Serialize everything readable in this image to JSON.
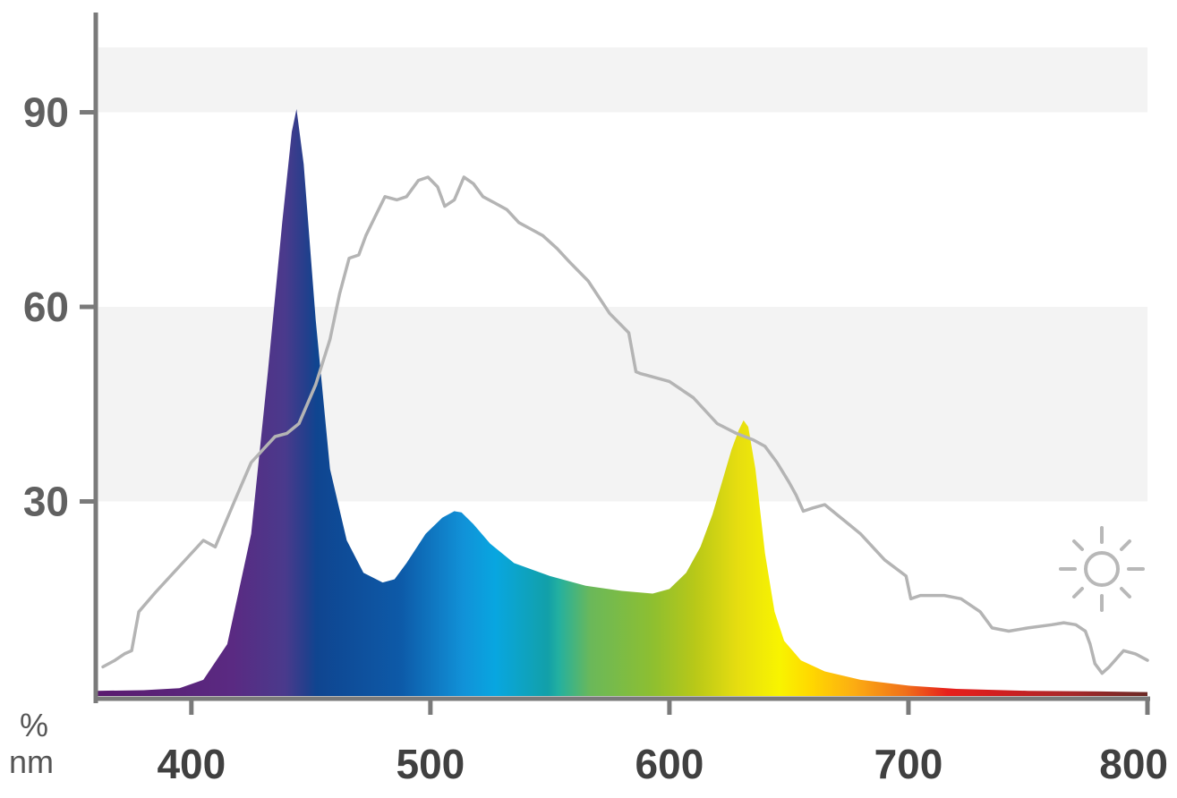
{
  "chart_data": {
    "type": "area",
    "title": "",
    "xlabel": "nm",
    "ylabel": "%",
    "xlim": [
      360,
      800
    ],
    "ylim": [
      0,
      100
    ],
    "x_ticks": [
      400,
      500,
      600,
      700,
      800
    ],
    "x_tick_labels": [
      "400",
      "500",
      "600",
      "700",
      "800"
    ],
    "y_ticks": [
      30,
      60,
      90
    ],
    "y_tick_labels": [
      "30",
      "60",
      "90"
    ],
    "grid_bands": [
      [
        30,
        60
      ],
      [
        90,
        100
      ]
    ],
    "series": [
      {
        "style": "filled spectrum-colored area",
        "x": [
          360,
          380,
          395,
          405,
          415,
          425,
          432,
          438,
          442,
          444,
          447,
          452,
          458,
          465,
          472,
          480,
          485,
          490,
          498,
          505,
          510,
          513,
          518,
          525,
          535,
          550,
          565,
          580,
          593,
          600,
          607,
          613,
          618,
          622,
          626,
          629,
          631,
          633,
          636,
          640,
          644,
          648,
          655,
          665,
          680,
          700,
          720,
          750,
          780,
          800
        ],
        "y": [
          0.8,
          0.9,
          1.2,
          2.5,
          8,
          25,
          50,
          73,
          87,
          90.5,
          82,
          58,
          35,
          24,
          19,
          17.5,
          18,
          20.5,
          25,
          27.5,
          28.5,
          28.3,
          26.5,
          23.5,
          20.5,
          18.5,
          17,
          16.2,
          15.8,
          16.5,
          19,
          23,
          28,
          33,
          38,
          41,
          42.5,
          41.5,
          35,
          22,
          13,
          8.5,
          5.5,
          3.8,
          2.5,
          1.6,
          1.1,
          0.8,
          0.7,
          0.6
        ]
      },
      {
        "style": "gray line",
        "icon": "sun-icon",
        "x": [
          363,
          368,
          372,
          375,
          378,
          385,
          395,
          405,
          410,
          418,
          425,
          430,
          435,
          440,
          445,
          452,
          458,
          462,
          466,
          470,
          473,
          477,
          481,
          486,
          490,
          495,
          499,
          503,
          506,
          510,
          514,
          518,
          522,
          527,
          532,
          537,
          542,
          547,
          553,
          558,
          566,
          575,
          583,
          586,
          588,
          590,
          600,
          610,
          620,
          628,
          635,
          640,
          645,
          650,
          653,
          656,
          660,
          665,
          670,
          675,
          680,
          690,
          699,
          701,
          705,
          715,
          722,
          730,
          735,
          742,
          750,
          760,
          765,
          770,
          774,
          776,
          778,
          781,
          784,
          790,
          795,
          800
        ],
        "y": [
          4.5,
          5.5,
          6.5,
          7,
          13,
          16,
          20,
          24,
          23,
          30,
          36,
          38,
          40,
          40.5,
          42,
          48,
          55,
          62,
          67.5,
          68,
          71,
          74,
          77,
          76.5,
          77,
          79.5,
          80,
          78.5,
          75.5,
          76.5,
          80,
          79,
          77,
          76,
          75,
          73,
          72,
          71,
          69,
          67,
          64,
          59,
          56,
          50,
          49.7,
          49.5,
          48.5,
          46,
          42,
          40.5,
          39.5,
          38.5,
          36,
          33,
          31,
          28.5,
          29,
          29.5,
          28,
          26.5,
          25,
          21,
          18.5,
          15,
          15.5,
          15.5,
          15,
          13,
          10.5,
          10,
          10.5,
          11,
          11.3,
          11,
          10,
          8,
          5,
          3.5,
          4.5,
          7,
          6.5,
          5.5
        ]
      }
    ]
  },
  "labels": {
    "percent_unit": "%",
    "nm_unit": "nm"
  }
}
